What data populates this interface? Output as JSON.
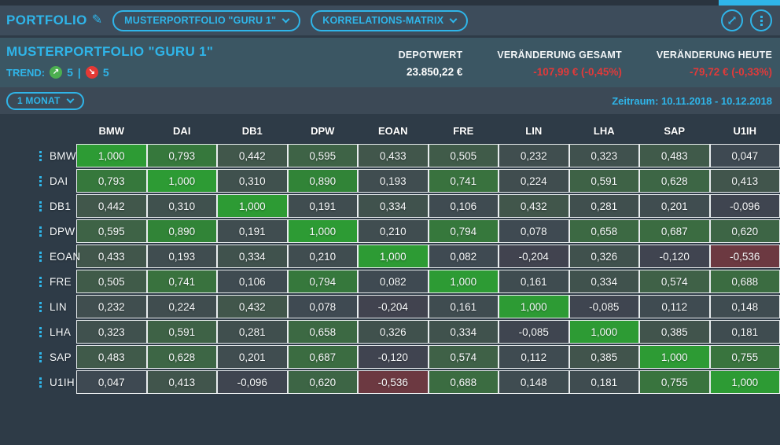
{
  "colors": {
    "accent": "#2fb5e9",
    "negative": "#e03a3a",
    "trend_up": "#4caf50",
    "trend_down": "#e53935",
    "heat_neutral": "#3e4853",
    "heat_positive_max": "#2d9b34",
    "heat_negative_max": "#962a34"
  },
  "topbar": {
    "title": "PORTFOLIO",
    "portfolio_dropdown": "MUSTERPORTFOLIO \"GURU 1\"",
    "view_dropdown": "KORRELATIONS-MATRIX"
  },
  "summary": {
    "title": "MUSTERPORTFOLIO \"GURU 1\"",
    "trend_label": "TREND:",
    "trend_up_count": "5",
    "trend_separator": "|",
    "trend_down_count": "5",
    "stats": [
      {
        "label": "DEPOTWERT",
        "value": "23.850,22 €",
        "negative": false
      },
      {
        "label": "VERÄNDERUNG GESAMT",
        "value": "-107,99 € (-0,45%)",
        "negative": true
      },
      {
        "label": "VERÄNDERUNG HEUTE",
        "value": "-79,72 € (-0,33%)",
        "negative": true
      }
    ]
  },
  "period": {
    "selector_label": "1 MONAT",
    "range_label": "Zeitraum: 10.11.2018 - 10.12.2018"
  },
  "chart_data": {
    "type": "heatmap",
    "title": "Korrelations-Matrix",
    "tickers": [
      "BMW",
      "DAI",
      "DB1",
      "DPW",
      "EOAN",
      "FRE",
      "LIN",
      "LHA",
      "SAP",
      "U1IH"
    ],
    "matrix": [
      [
        1.0,
        0.793,
        0.442,
        0.595,
        0.433,
        0.505,
        0.232,
        0.323,
        0.483,
        0.047
      ],
      [
        0.793,
        1.0,
        0.31,
        0.89,
        0.193,
        0.741,
        0.224,
        0.591,
        0.628,
        0.413
      ],
      [
        0.442,
        0.31,
        1.0,
        0.191,
        0.334,
        0.106,
        0.432,
        0.281,
        0.201,
        -0.096
      ],
      [
        0.595,
        0.89,
        0.191,
        1.0,
        0.21,
        0.794,
        0.078,
        0.658,
        0.687,
        0.62
      ],
      [
        0.433,
        0.193,
        0.334,
        0.21,
        1.0,
        0.082,
        -0.204,
        0.326,
        -0.12,
        -0.536
      ],
      [
        0.505,
        0.741,
        0.106,
        0.794,
        0.082,
        1.0,
        0.161,
        0.334,
        0.574,
        0.688
      ],
      [
        0.232,
        0.224,
        0.432,
        0.078,
        -0.204,
        0.161,
        1.0,
        -0.085,
        0.112,
        0.148
      ],
      [
        0.323,
        0.591,
        0.281,
        0.658,
        0.326,
        0.334,
        -0.085,
        1.0,
        0.385,
        0.181
      ],
      [
        0.483,
        0.628,
        0.201,
        0.687,
        -0.12,
        0.574,
        0.112,
        0.385,
        1.0,
        0.755
      ],
      [
        0.047,
        0.413,
        -0.096,
        0.62,
        -0.536,
        0.688,
        0.148,
        0.181,
        0.755,
        1.0
      ]
    ],
    "value_range": [
      -1,
      1
    ]
  }
}
